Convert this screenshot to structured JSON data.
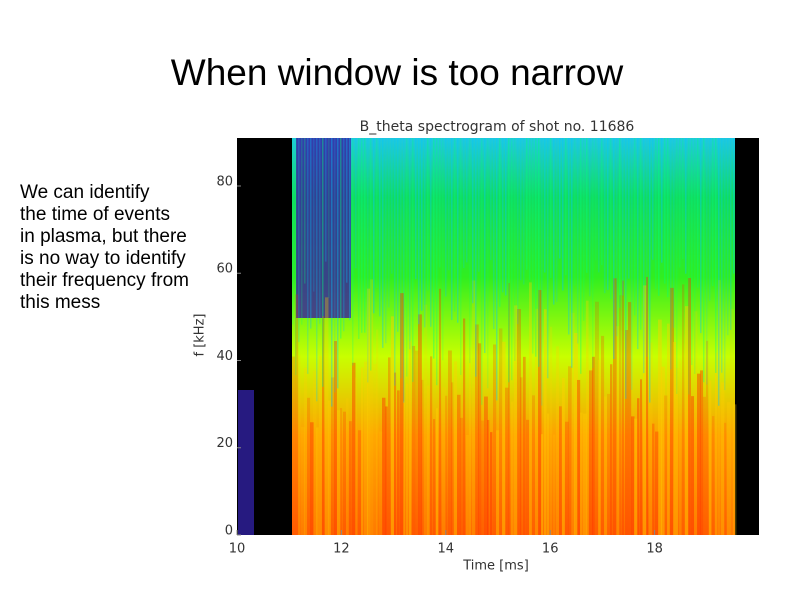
{
  "slide": {
    "title": "When window is too narrow",
    "body_lines": [
      "We can identify",
      "the time of events",
      "in plasma, but there",
      "is no way to identify",
      "their frequency from",
      "this mess"
    ]
  },
  "chart_data": {
    "type": "spectrogram",
    "title": "B_theta spectrogram of shot no. 11686",
    "xlabel": "Time [ms]",
    "ylabel": "f [kHz]",
    "xlim": [
      10,
      20
    ],
    "ylim": [
      0,
      91
    ],
    "xticks": [
      10,
      12,
      14,
      16,
      18
    ],
    "yticks": [
      0,
      20,
      40,
      60,
      80
    ]
  }
}
